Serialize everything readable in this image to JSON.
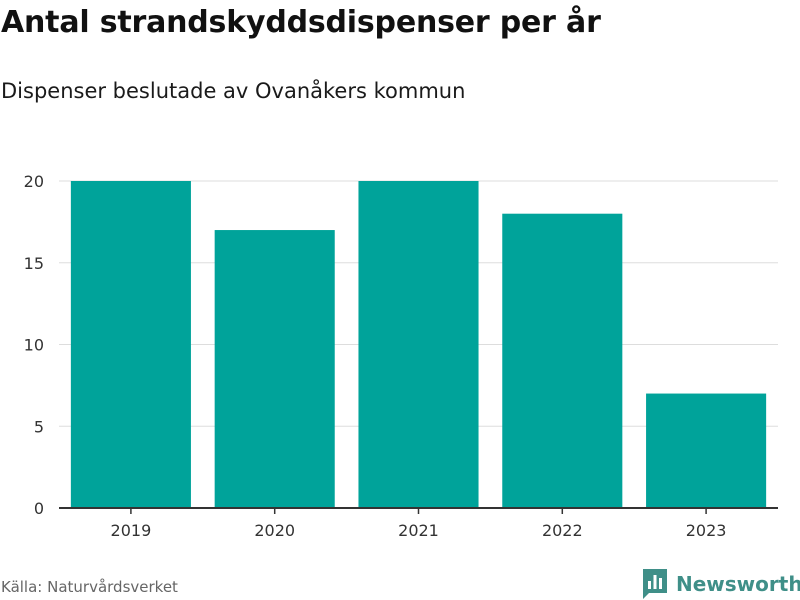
{
  "chart_data": {
    "type": "bar",
    "title": "Antal strandskyddsdispenser per år",
    "subtitle": "Dispenser beslutade av Ovanåkers kommun",
    "categories": [
      "2019",
      "2020",
      "2021",
      "2022",
      "2023"
    ],
    "values": [
      20,
      17,
      20,
      18,
      7
    ],
    "ylim": [
      0,
      20
    ],
    "yticks": [
      0,
      5,
      10,
      15,
      20
    ],
    "grid": true,
    "legend": "none",
    "bar_color": "#00a39a",
    "grid_color": "#dddddd",
    "axis_color": "#333333"
  },
  "footer": {
    "source": "Källa: Naturvårdsverket",
    "brand": "Newsworthy",
    "brand_color": "#3f8f88",
    "brand_icon": "bar-chart-flag-icon"
  }
}
